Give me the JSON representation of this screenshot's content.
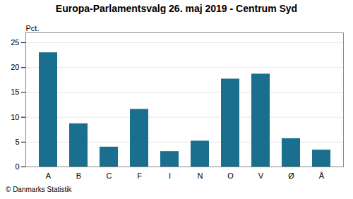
{
  "chart_data": {
    "type": "bar",
    "title": "Europa-Parlamentsvalg 26. maj 2019 - Centrum Syd",
    "ylabel": "Pct.",
    "categories": [
      "A",
      "B",
      "C",
      "F",
      "I",
      "N",
      "O",
      "V",
      "Ø",
      "Å"
    ],
    "values": [
      23.0,
      8.7,
      4.0,
      11.6,
      3.1,
      5.2,
      17.7,
      18.7,
      5.7,
      3.4
    ],
    "color": "#1a6e8e",
    "ylim": [
      0,
      27
    ],
    "yticks": [
      0,
      5,
      10,
      15,
      20,
      25
    ],
    "grid": true,
    "annotations": [
      "© Danmarks Statistik"
    ]
  }
}
